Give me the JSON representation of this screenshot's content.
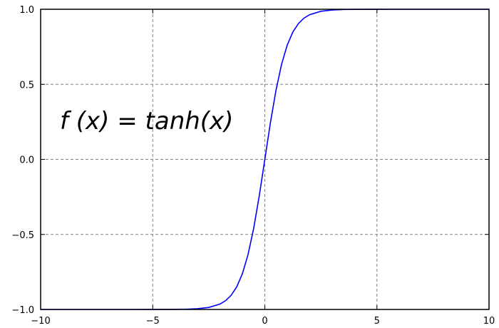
{
  "chart_data": {
    "type": "line",
    "title": "",
    "xlabel": "",
    "ylabel": "",
    "xlim": [
      -10,
      10
    ],
    "ylim": [
      -1.0,
      1.0
    ],
    "xticks": [
      -10,
      -5,
      0,
      5,
      10
    ],
    "xtick_labels": [
      "−10",
      "−5",
      "0",
      "5",
      "10"
    ],
    "yticks": [
      1.0,
      0.5,
      0.0,
      -0.5,
      -1.0
    ],
    "ytick_labels": [
      "1.0",
      "0.5",
      "0.0",
      "−0.5",
      "−1.0"
    ],
    "grid": true,
    "legend": "none",
    "annotation": "f (x) = tanh(x)",
    "series": [
      {
        "color": "#0000ff",
        "x": [
          -10,
          -8,
          -6,
          -5,
          -4,
          -3.5,
          -3,
          -2.5,
          -2,
          -1.75,
          -1.5,
          -1.25,
          -1,
          -0.75,
          -0.5,
          -0.25,
          0,
          0.25,
          0.5,
          0.75,
          1,
          1.25,
          1.5,
          1.75,
          2,
          2.5,
          3,
          3.5,
          4,
          5,
          6,
          8,
          10
        ],
        "y": [
          -1.0,
          -1.0,
          -1.0,
          -0.9999,
          -0.9993,
          -0.9982,
          -0.9951,
          -0.9866,
          -0.964,
          -0.9414,
          -0.9051,
          -0.8483,
          -0.7616,
          -0.6351,
          -0.4621,
          -0.2449,
          0.0,
          0.2449,
          0.4621,
          0.6351,
          0.7616,
          0.8483,
          0.9051,
          0.9414,
          0.964,
          0.9866,
          0.9951,
          0.9982,
          0.9993,
          0.9999,
          1.0,
          1.0,
          1.0
        ]
      }
    ]
  }
}
